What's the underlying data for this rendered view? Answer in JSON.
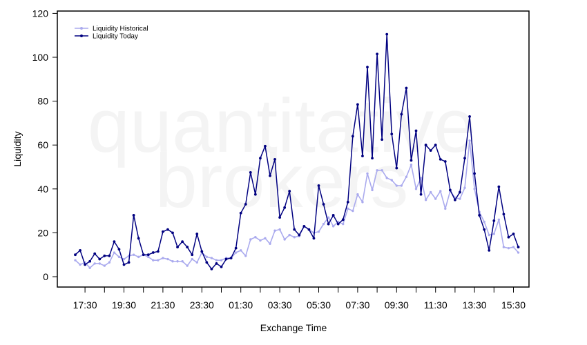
{
  "watermark": [
    "quantitative",
    "brokers"
  ],
  "chart_data": {
    "type": "line",
    "xlabel": "Exchange Time",
    "ylabel": "Liquidity",
    "ylim": [
      0,
      120
    ],
    "yticks": [
      0,
      20,
      40,
      60,
      80,
      100,
      120
    ],
    "xticks": [
      "17:30",
      "19:30",
      "21:30",
      "23:30",
      "01:30",
      "03:30",
      "05:30",
      "07:30",
      "09:30",
      "11:30",
      "13:30",
      "15:30"
    ],
    "x_start": "17:00",
    "x_step_minutes": 15,
    "grid": false,
    "legend_position": "top-left",
    "series": [
      {
        "name": "Liquidity Historical",
        "color": "#aaaaee",
        "values": [
          7.5,
          5.5,
          6.5,
          4,
          6,
          6,
          5,
          6.5,
          11,
          9,
          8,
          9.5,
          10,
          9,
          10,
          9,
          7.5,
          7.5,
          8.5,
          8,
          7,
          7,
          7,
          5,
          8,
          6.5,
          11,
          9,
          8.5,
          7.5,
          7.5,
          8.5,
          8.5,
          11,
          12,
          9.5,
          17,
          18,
          16.5,
          17.5,
          15,
          21,
          21.5,
          17,
          19,
          18,
          18.5,
          23,
          21.5,
          20,
          20.5,
          24,
          27,
          23,
          25,
          24,
          31,
          30,
          37.5,
          34,
          47,
          39.5,
          48.5,
          48.5,
          45,
          44,
          41.5,
          41.5,
          45.5,
          51,
          40,
          45,
          35,
          38.5,
          35.5,
          39,
          31,
          39,
          36,
          35.5,
          40.5,
          62,
          40,
          29.5,
          25,
          19,
          19.5,
          26,
          13.5,
          13,
          13.5,
          11
        ]
      },
      {
        "name": "Liquidity Today",
        "color": "#000080",
        "values": [
          10,
          12,
          5.5,
          7,
          10.5,
          8,
          9.5,
          9.5,
          16,
          12.5,
          5.5,
          6.5,
          28,
          17.5,
          10,
          10,
          11,
          11.5,
          20.5,
          21.5,
          20,
          13.5,
          16,
          13.5,
          10,
          19.5,
          11.5,
          6.5,
          3.5,
          6,
          4.5,
          8,
          8.5,
          13,
          29,
          33,
          47.5,
          37.5,
          54,
          59.5,
          46,
          53.5,
          27,
          31.5,
          39,
          21.5,
          19,
          23,
          21.5,
          17.5,
          41.5,
          33,
          24,
          28,
          24,
          26,
          34,
          64,
          78.5,
          55,
          95.5,
          54,
          101.5,
          62.5,
          110.5,
          65,
          49.5,
          74,
          86,
          53,
          66.5,
          37.5,
          60,
          57.5,
          60,
          53.5,
          52.5,
          39.5,
          35,
          38.5,
          54,
          73,
          47,
          28,
          21.5,
          12,
          25.5,
          41,
          28.5,
          18,
          19.5,
          13.5
        ]
      }
    ]
  }
}
